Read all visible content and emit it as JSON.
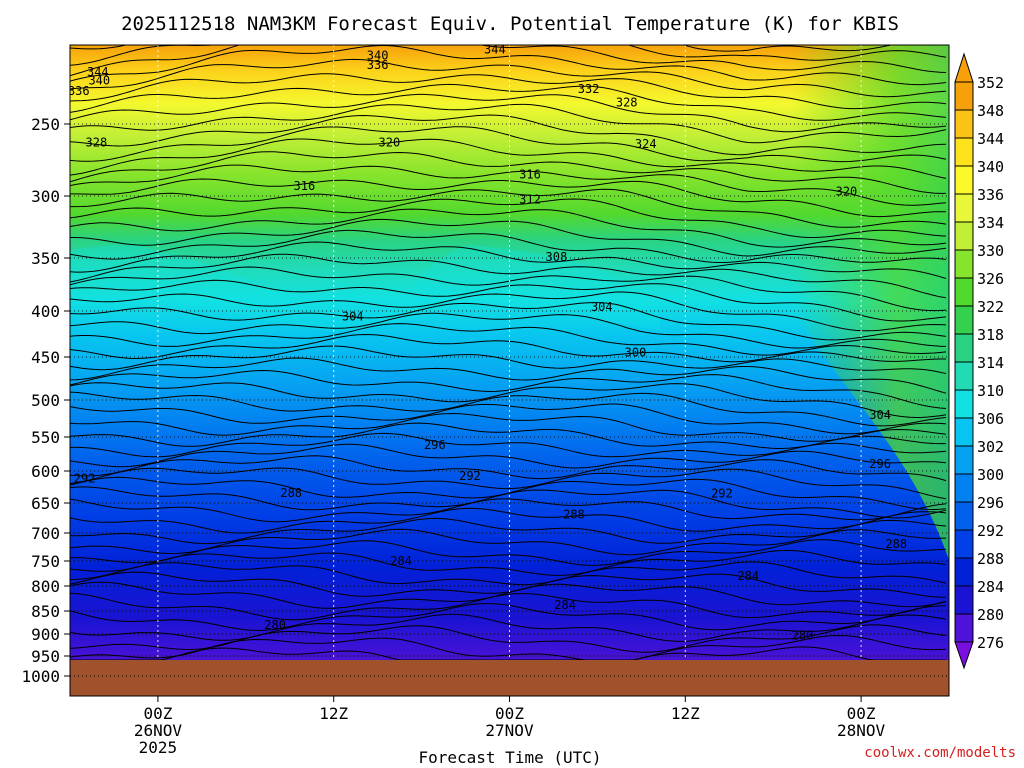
{
  "chart_data": {
    "type": "heatmap",
    "title": "2025112518 NAM3KM Forecast Equiv. Potential Temperature (K) for KBIS",
    "xlabel": "Forecast Time (UTC)",
    "ylabel": "",
    "credit": "coolwx.com/modelts",
    "y_ticks": [
      "250",
      "300",
      "350",
      "400",
      "450",
      "500",
      "550",
      "600",
      "650",
      "700",
      "750",
      "800",
      "850",
      "900",
      "950",
      "1000"
    ],
    "y_tick_values": [
      250,
      300,
      350,
      400,
      450,
      500,
      550,
      600,
      650,
      700,
      750,
      800,
      850,
      900,
      950,
      1000
    ],
    "x_ticks": [
      {
        "hours": 6,
        "line1": "00Z",
        "line2": "26NOV",
        "line3": "2025"
      },
      {
        "hours": 18,
        "line1": "12Z",
        "line2": "",
        "line3": ""
      },
      {
        "hours": 30,
        "line1": "00Z",
        "line2": "27NOV",
        "line3": ""
      },
      {
        "hours": 42,
        "line1": "12Z",
        "line2": "",
        "line3": ""
      },
      {
        "hours": 54,
        "line1": "00Z",
        "line2": "28NOV",
        "line3": ""
      }
    ],
    "x_range_hours": [
      0,
      60
    ],
    "colorbar_ticks": [
      352,
      348,
      344,
      340,
      336,
      334,
      330,
      326,
      322,
      318,
      314,
      310,
      306,
      302,
      300,
      296,
      292,
      288,
      284,
      280,
      276
    ],
    "colorbar_colors": [
      "#f6a10a",
      "#fbc313",
      "#fde21c",
      "#fcf82a",
      "#e9f73a",
      "#c1ef36",
      "#86e42c",
      "#52d92e",
      "#34d14f",
      "#2ad383",
      "#22dbb5",
      "#12e1e2",
      "#08c4f0",
      "#06a2f2",
      "#0281f1",
      "#0160ec",
      "#0040e6",
      "#0121d8",
      "#1a13d2",
      "#4e12d8",
      "#7a0fdf"
    ],
    "contour_labels": [
      {
        "text": "344",
        "hours": 1.9,
        "p": 184
      },
      {
        "text": "340",
        "hours": 21.0,
        "p": 163
      },
      {
        "text": "344",
        "hours": 29.0,
        "p": 156
      },
      {
        "text": "336",
        "hours": 21.0,
        "p": 175
      },
      {
        "text": "340",
        "hours": 2.0,
        "p": 195
      },
      {
        "text": "336",
        "hours": 0.6,
        "p": 208
      },
      {
        "text": "332",
        "hours": 35.4,
        "p": 206
      },
      {
        "text": "328",
        "hours": 38.0,
        "p": 223
      },
      {
        "text": "328",
        "hours": 1.8,
        "p": 263
      },
      {
        "text": "320",
        "hours": 21.8,
        "p": 263
      },
      {
        "text": "324",
        "hours": 39.3,
        "p": 264
      },
      {
        "text": "316",
        "hours": 16.0,
        "p": 293
      },
      {
        "text": "316",
        "hours": 31.4,
        "p": 285
      },
      {
        "text": "312",
        "hours": 31.4,
        "p": 303
      },
      {
        "text": "320",
        "hours": 53.0,
        "p": 297
      },
      {
        "text": "308",
        "hours": 33.2,
        "p": 349
      },
      {
        "text": "304",
        "hours": 36.3,
        "p": 396
      },
      {
        "text": "304",
        "hours": 19.3,
        "p": 406
      },
      {
        "text": "300",
        "hours": 38.6,
        "p": 445
      },
      {
        "text": "304",
        "hours": 55.3,
        "p": 520
      },
      {
        "text": "296",
        "hours": 24.9,
        "p": 562
      },
      {
        "text": "296",
        "hours": 55.3,
        "p": 590
      },
      {
        "text": "292",
        "hours": 1.0,
        "p": 612
      },
      {
        "text": "292",
        "hours": 27.3,
        "p": 608
      },
      {
        "text": "292",
        "hours": 44.5,
        "p": 635
      },
      {
        "text": "288",
        "hours": 15.1,
        "p": 634
      },
      {
        "text": "288",
        "hours": 34.4,
        "p": 669
      },
      {
        "text": "288",
        "hours": 56.4,
        "p": 720
      },
      {
        "text": "284",
        "hours": 22.6,
        "p": 750
      },
      {
        "text": "284",
        "hours": 46.3,
        "p": 780
      },
      {
        "text": "284",
        "hours": 33.8,
        "p": 838
      },
      {
        "text": "280",
        "hours": 14.0,
        "p": 880
      },
      {
        "text": "280",
        "hours": 50.0,
        "p": 903
      }
    ]
  }
}
